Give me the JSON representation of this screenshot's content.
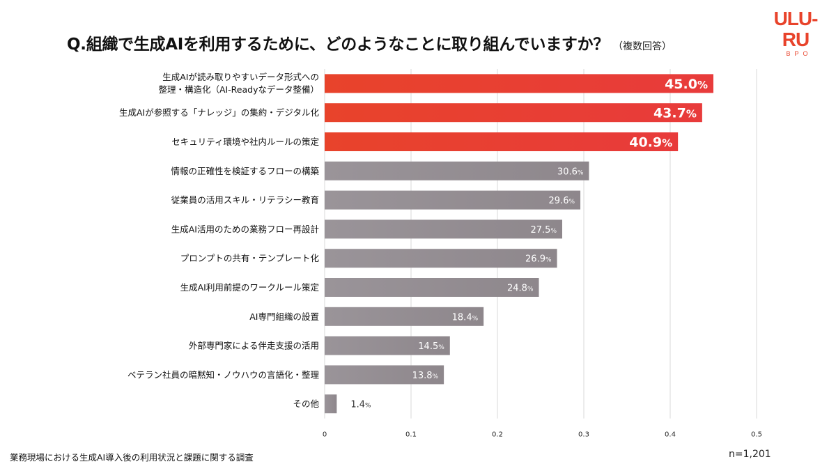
{
  "brand": {
    "logo_text": "ULU-RU",
    "logo_sub": "BPO",
    "accent": "#e8432b"
  },
  "title": {
    "question": "Q.組織で生成AIを利用するために、どのようなことに取り組んでいますか？",
    "note": "（複数回答）"
  },
  "footer": {
    "source": "業務現場における生成AI導入後の利用状況と課題に関する調査",
    "n": "n=1,201"
  },
  "chart_data": {
    "type": "bar",
    "orientation": "horizontal",
    "categories": [
      [
        "生成AIが読み取りやすいデータ形式への",
        "整理・構造化（AI-Readyなデータ整備）"
      ],
      [
        "生成AIが参照する「ナレッジ」の集約・デジタル化"
      ],
      [
        "セキュリティ環境や社内ルールの策定"
      ],
      [
        "情報の正確性を検証するフローの構築"
      ],
      [
        "従業員の活用スキル・リテラシー教育"
      ],
      [
        "生成AI活用のための業務フロー再設計"
      ],
      [
        "プロンプトの共有・テンプレート化"
      ],
      [
        "生成AI利用前提のワークルール策定"
      ],
      [
        "AI専門組織の設置"
      ],
      [
        "外部専門家による伴走支援の活用"
      ],
      [
        "ベテラン社員の暗黙知・ノウハウの言語化・整理"
      ],
      [
        "その他"
      ]
    ],
    "values": [
      0.45,
      0.437,
      0.409,
      0.306,
      0.296,
      0.275,
      0.269,
      0.248,
      0.184,
      0.145,
      0.138,
      0.014
    ],
    "value_labels": [
      "45.0",
      "43.7",
      "40.9",
      "30.6",
      "29.6",
      "27.5",
      "26.9",
      "24.8",
      "18.4",
      "14.5",
      "13.8",
      "1.4"
    ],
    "value_suffix": "%",
    "highlight_top_n": 3,
    "xlim": [
      0,
      0.5
    ],
    "xticks": [
      0,
      0.1,
      0.2,
      0.3,
      0.4,
      0.5
    ],
    "xtick_labels": [
      "0",
      "0.1",
      "0.2",
      "0.3",
      "0.4",
      "0.5"
    ],
    "grid": true,
    "colors": {
      "highlight": "#e8432b",
      "highlight_end": "#e83b3b",
      "normal": "#9a9499",
      "normal_end": "#8e878c",
      "grid": "#d9d9d9"
    }
  }
}
